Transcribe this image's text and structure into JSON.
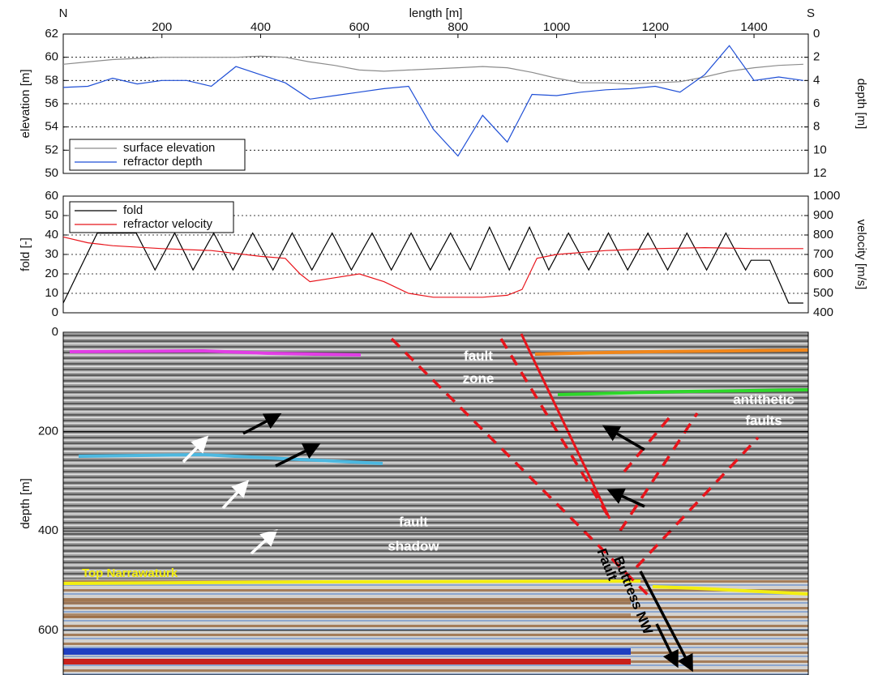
{
  "chart_data": [
    {
      "type": "line",
      "annotations": [
        "N",
        "S"
      ],
      "xlabel": "length [m]",
      "xlim": [
        0,
        1510
      ],
      "xticks": [
        200,
        400,
        600,
        800,
        1000,
        1200,
        1400
      ],
      "ylabel": "elevation [m]",
      "ylim": [
        50,
        62
      ],
      "yticks": [
        50,
        52,
        54,
        56,
        58,
        60,
        62
      ],
      "y2label": "depth [m]",
      "y2lim": [
        12,
        0
      ],
      "y2ticks": [
        0,
        2,
        4,
        6,
        8,
        10,
        12
      ],
      "grid": "dotted",
      "legend": "lower left",
      "x": [
        0,
        50,
        100,
        150,
        200,
        250,
        300,
        350,
        400,
        450,
        500,
        550,
        600,
        650,
        700,
        750,
        800,
        850,
        900,
        950,
        1000,
        1050,
        1100,
        1150,
        1200,
        1250,
        1300,
        1350,
        1400,
        1450,
        1500
      ],
      "series": [
        {
          "name": "surface elevation",
          "color": "#8c8c8c",
          "values": [
            59.4,
            59.6,
            59.8,
            59.9,
            60,
            60,
            60,
            60,
            60.1,
            60,
            59.6,
            59.3,
            58.9,
            58.8,
            58.9,
            59.0,
            59.1,
            59.2,
            59.1,
            58.7,
            58.2,
            57.8,
            57.8,
            57.7,
            57.8,
            57.9,
            58.3,
            58.8,
            59.1,
            59.3,
            59.4
          ]
        },
        {
          "name": "refractor depth",
          "color": "#1f4fd6",
          "axis": "y2",
          "values": [
            4.6,
            4.5,
            3.8,
            4.3,
            4.0,
            4.0,
            4.5,
            2.8,
            3.5,
            4.2,
            5.6,
            5.3,
            5.0,
            4.7,
            4.5,
            8.2,
            10.5,
            7.0,
            9.3,
            5.2,
            5.3,
            5.0,
            4.8,
            4.7,
            4.5,
            5.0,
            3.5,
            1.0,
            4.0,
            3.7,
            4.0
          ]
        }
      ]
    },
    {
      "type": "line",
      "xlim": [
        0,
        1510
      ],
      "ylabel": "fold [-]",
      "ylim": [
        0,
        60
      ],
      "yticks": [
        0,
        10,
        20,
        30,
        40,
        50,
        60
      ],
      "y2label": "velocity [m/s]",
      "y2lim": [
        400,
        1000
      ],
      "y2ticks": [
        400,
        500,
        600,
        700,
        800,
        900,
        1000
      ],
      "grid": "dotted",
      "legend": "upper left",
      "series": [
        {
          "name": "fold",
          "color": "#000000",
          "x": [
            0,
            69,
            148,
            186,
            226,
            263,
            305,
            344,
            384,
            425,
            464,
            504,
            545,
            584,
            626,
            665,
            705,
            744,
            785,
            825,
            864,
            904,
            945,
            984,
            1024,
            1065,
            1105,
            1144,
            1185,
            1225,
            1264,
            1304,
            1343,
            1383,
            1394,
            1432,
            1470,
            1500
          ],
          "values": [
            5,
            41,
            41,
            22,
            41,
            22,
            41,
            22,
            41,
            22,
            41,
            22,
            41,
            22,
            41,
            22,
            41,
            22,
            41,
            22,
            44,
            22,
            44,
            22,
            41,
            22,
            41,
            22,
            41,
            22,
            41,
            22,
            41,
            22,
            27,
            27,
            5,
            5
          ]
        },
        {
          "name": "refractor velocity",
          "color": "#e8141b",
          "axis": "y2",
          "x": [
            0,
            50,
            100,
            200,
            300,
            400,
            450,
            480,
            500,
            550,
            600,
            650,
            700,
            750,
            850,
            900,
            930,
            960,
            1000,
            1100,
            1200,
            1300,
            1400,
            1500
          ],
          "values": [
            790,
            760,
            745,
            730,
            720,
            690,
            680,
            600,
            560,
            580,
            600,
            560,
            500,
            480,
            480,
            490,
            520,
            680,
            700,
            720,
            730,
            735,
            730,
            730
          ]
        }
      ]
    },
    {
      "type": "section",
      "ylabel": "depth [m]",
      "ylim": [
        690,
        0
      ],
      "yticks": [
        0,
        200,
        400,
        600
      ],
      "grid": "solid",
      "annotations": [
        "fault",
        "zone",
        "antithetic",
        "faults",
        "fault",
        "shadow",
        "Top Narrawaturk",
        "Fault",
        "Buttress NW"
      ]
    }
  ]
}
